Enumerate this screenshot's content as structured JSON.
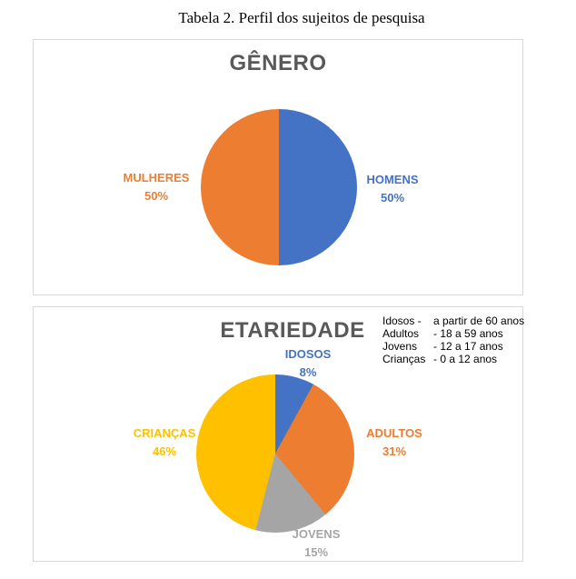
{
  "page_title": "Tabela 2. Perfil dos sujeitos de pesquisa",
  "colors": {
    "blue": "#4472C4",
    "orange": "#ED7D31",
    "gray": "#A5A5A5",
    "yellow": "#FFC000",
    "chart_title_gray": "#595959",
    "box_border": "#D9D9D9"
  },
  "chart_data": [
    {
      "type": "pie",
      "title": "GÊNERO",
      "start_angle_deg": 0,
      "direction": "clockwise",
      "slices": [
        {
          "label": "HOMENS",
          "value": 50,
          "pct": "50%",
          "color": "#4472C4"
        },
        {
          "label": "MULHERES",
          "value": 50,
          "pct": "50%",
          "color": "#ED7D31"
        }
      ]
    },
    {
      "type": "pie",
      "title": "ETARIEDADE",
      "start_angle_deg": 0,
      "direction": "clockwise",
      "slices": [
        {
          "label": "IDOSOS",
          "value": 8,
          "pct": "8%",
          "color": "#4472C4"
        },
        {
          "label": "ADULTOS",
          "value": 31,
          "pct": "31%",
          "color": "#ED7D31"
        },
        {
          "label": "JOVENS",
          "value": 15,
          "pct": "15%",
          "color": "#A5A5A5"
        },
        {
          "label": "CRIANÇAS",
          "value": 46,
          "pct": "46%",
          "color": "#FFC000"
        }
      ],
      "legend": [
        {
          "name": "Idosos -",
          "range": "a partir de 60 anos"
        },
        {
          "name": "Adultos",
          "range": "- 18 a 59 anos"
        },
        {
          "name": "Jovens",
          "range": "- 12 a 17 anos"
        },
        {
          "name": "Crianças",
          "range": "- 0 a 12 anos"
        }
      ]
    }
  ]
}
